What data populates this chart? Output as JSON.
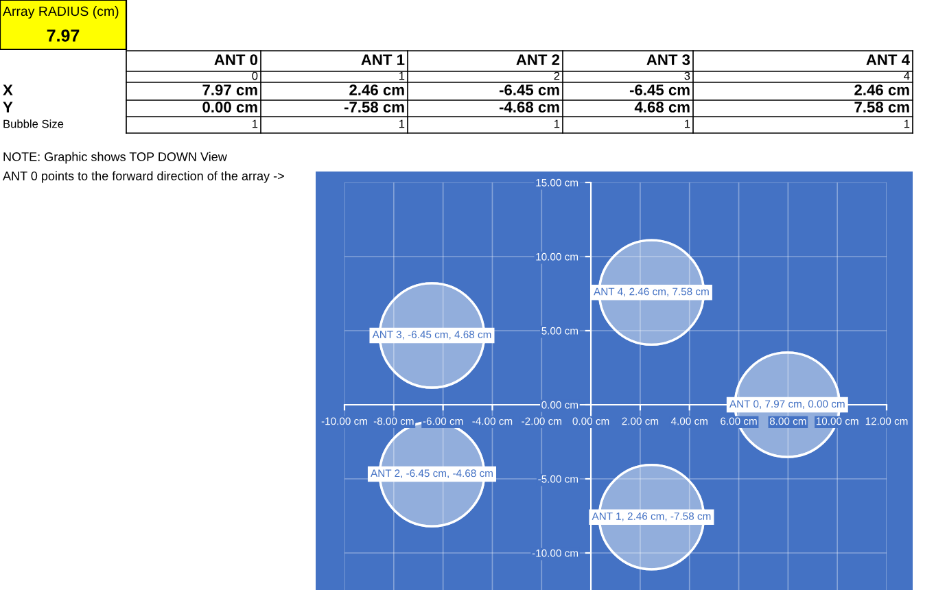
{
  "chart_data": [
    {
      "type": "other",
      "title": "Array RADIUS (cm)",
      "subtitle": "7.97",
      "categories": [
        "ANT 0",
        "ANT 1",
        "ANT 2",
        "ANT 3",
        "ANT 4"
      ],
      "y_categories": [
        null,
        "X",
        "Y",
        "Bubble Size"
      ],
      "cell_labels": [
        [
          "0",
          "1",
          "2",
          "3",
          "4"
        ],
        [
          "7.97 cm",
          "2.46 cm",
          "-6.45 cm",
          "-6.45 cm",
          "2.46 cm"
        ],
        [
          "0.00 cm",
          "-7.58 cm",
          "-4.68 cm",
          "4.68 cm",
          "7.58 cm"
        ],
        [
          "1",
          "1",
          "1",
          "1",
          "1"
        ]
      ],
      "annotations": [
        "NOTE: Graphic shows TOP DOWN View",
        "ANT 0 points to the forward direction of the array ->"
      ]
    },
    {
      "type": "bubble",
      "series": [
        {
          "color": "#b4c7e7",
          "x": [
            7.97,
            2.46,
            -6.45,
            -6.45,
            2.46
          ],
          "values": [
            0.0,
            -7.58,
            -4.68,
            4.68,
            7.58
          ],
          "sizes": [
            1,
            1,
            1,
            1,
            1
          ],
          "value_labels": [
            "ANT 0, 7.97 cm, 0.00 cm",
            "ANT 1, 2.46 cm, -7.58 cm",
            "ANT 2, -6.45 cm, -4.68 cm",
            "ANT 3, -6.45 cm, 4.68 cm",
            "ANT 4, 2.46 cm, 7.58 cm"
          ]
        }
      ],
      "xlim": [
        -10,
        12
      ],
      "ylim": [
        -12.5,
        15
      ],
      "xticks": [
        {
          "value": -10,
          "label": "-10.00 cm"
        },
        {
          "value": -8,
          "label": "-8.00 cm"
        },
        {
          "value": -6,
          "label": "-6.00 cm"
        },
        {
          "value": -4,
          "label": "-4.00 cm"
        },
        {
          "value": -2,
          "label": "-2.00 cm"
        },
        {
          "value": 0,
          "label": "0.00 cm"
        },
        {
          "value": 2,
          "label": "2.00 cm"
        },
        {
          "value": 4,
          "label": "4.00 cm"
        },
        {
          "value": 6,
          "label": "6.00 cm"
        },
        {
          "value": 8,
          "label": "8.00 cm"
        },
        {
          "value": 10,
          "label": "10.00 cm"
        },
        {
          "value": 12,
          "label": "12.00 cm"
        }
      ],
      "yticks": [
        {
          "value": -10,
          "label": "-10.00 cm"
        },
        {
          "value": -5,
          "label": "-5.00 cm"
        },
        {
          "value": 0,
          "label": "0.00 cm"
        },
        {
          "value": 5,
          "label": "5.00 cm"
        },
        {
          "value": 10,
          "label": "10.00 cm"
        },
        {
          "value": 15,
          "label": "15.00 cm"
        }
      ],
      "grid": true
    }
  ]
}
